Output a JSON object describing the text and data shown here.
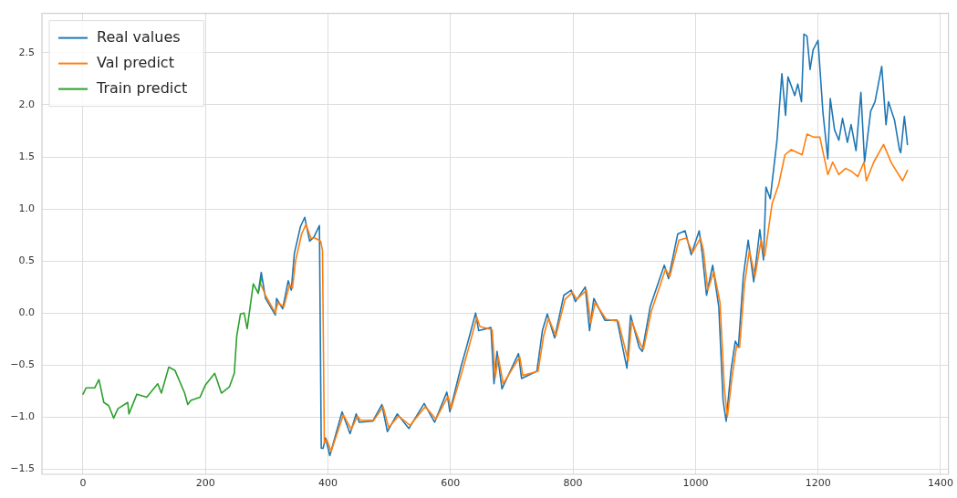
{
  "chart_data": {
    "type": "line",
    "xlim": [
      -67,
      1413
    ],
    "ylim": [
      -1.55,
      2.88
    ],
    "xticks": [
      0,
      200,
      400,
      600,
      800,
      1000,
      1200,
      1400
    ],
    "yticks": [
      {
        "value": -1.5,
        "label": "−1.5"
      },
      {
        "value": -1.0,
        "label": "−1.0"
      },
      {
        "value": -0.5,
        "label": "−0.5"
      },
      {
        "value": 0,
        "label": "0.0"
      },
      {
        "value": 0.5,
        "label": "0.5"
      },
      {
        "value": 1.0,
        "label": "1.0"
      },
      {
        "value": 1.5,
        "label": "1.5"
      },
      {
        "value": 2.0,
        "label": "2.0"
      },
      {
        "value": 2.5,
        "label": "2.5"
      }
    ],
    "grid": true,
    "legend": "top left",
    "marker": "none",
    "line_style": "solid",
    "series": [
      {
        "name": "Real values",
        "color": "#1f77b4",
        "x": [
          286,
          291,
          298,
          314,
          316,
          326,
          335,
          340,
          345,
          355,
          362,
          370,
          377,
          386,
          389,
          392,
          396,
          403,
          423,
          436,
          446,
          451,
          473,
          488,
          497,
          513,
          532,
          557,
          574,
          594,
          599,
          617,
          627,
          641,
          646,
          666,
          671,
          676,
          684,
          711,
          716,
          741,
          750,
          758,
          770,
          785,
          797,
          804,
          820,
          827,
          834,
          852,
          872,
          888,
          894,
          908,
          913,
          926,
          949,
          956,
          971,
          983,
          993,
          1006,
          1011,
          1018,
          1028,
          1038,
          1045,
          1050,
          1058,
          1065,
          1070,
          1078,
          1086,
          1095,
          1105,
          1111,
          1115,
          1122,
          1133,
          1141,
          1147,
          1151,
          1162,
          1167,
          1173,
          1177,
          1182,
          1187,
          1192,
          1200,
          1208,
          1216,
          1220,
          1227,
          1234,
          1240,
          1248,
          1254,
          1262,
          1270,
          1276,
          1286,
          1293,
          1304,
          1311,
          1315,
          1325,
          1333,
          1335,
          1341,
          1346
        ],
        "values": [
          0.19,
          0.39,
          0.14,
          -0.02,
          0.14,
          0.04,
          0.31,
          0.22,
          0.57,
          0.83,
          0.92,
          0.69,
          0.73,
          0.84,
          -1.3,
          -1.3,
          -1.2,
          -1.37,
          -0.95,
          -1.16,
          -0.97,
          -1.05,
          -1.04,
          -0.88,
          -1.14,
          -0.97,
          -1.11,
          -0.87,
          -1.05,
          -0.76,
          -0.95,
          -0.52,
          -0.31,
          0.0,
          -0.17,
          -0.14,
          -0.68,
          -0.37,
          -0.73,
          -0.39,
          -0.63,
          -0.56,
          -0.17,
          -0.01,
          -0.24,
          0.17,
          0.22,
          0.11,
          0.25,
          -0.17,
          0.14,
          -0.07,
          -0.07,
          -0.53,
          -0.02,
          -0.33,
          -0.37,
          0.06,
          0.46,
          0.33,
          0.76,
          0.79,
          0.56,
          0.79,
          0.57,
          0.17,
          0.46,
          0.06,
          -0.84,
          -1.04,
          -0.55,
          -0.27,
          -0.33,
          0.35,
          0.7,
          0.3,
          0.8,
          0.51,
          1.21,
          1.1,
          1.66,
          2.3,
          1.9,
          2.27,
          2.09,
          2.2,
          2.03,
          2.68,
          2.66,
          2.34,
          2.53,
          2.62,
          1.93,
          1.48,
          2.06,
          1.76,
          1.66,
          1.87,
          1.64,
          1.81,
          1.56,
          2.12,
          1.45,
          1.94,
          2.03,
          2.37,
          1.81,
          2.03,
          1.85,
          1.57,
          1.54,
          1.89,
          1.62
        ]
      },
      {
        "name": "Val predict",
        "color": "#ff7f0e",
        "x": [
          290,
          298,
          314,
          318,
          328,
          337,
          342,
          347,
          357,
          364,
          372,
          379,
          388,
          391,
          394,
          398,
          405,
          425,
          438,
          448,
          453,
          475,
          490,
          499,
          515,
          534,
          559,
          576,
          596,
          601,
          619,
          629,
          643,
          648,
          668,
          673,
          678,
          686,
          713,
          718,
          743,
          752,
          760,
          772,
          787,
          799,
          806,
          822,
          829,
          836,
          854,
          874,
          890,
          896,
          910,
          915,
          928,
          951,
          958,
          973,
          985,
          995,
          1008,
          1013,
          1020,
          1030,
          1040,
          1047,
          1052,
          1060,
          1067,
          1072,
          1080,
          1088,
          1097,
          1107,
          1113,
          1125,
          1136,
          1146,
          1156,
          1174,
          1182,
          1193,
          1203,
          1216,
          1224,
          1234,
          1245,
          1255,
          1265,
          1275,
          1279,
          1291,
          1307,
          1320,
          1338,
          1346
        ],
        "values": [
          0.28,
          0.17,
          0.0,
          0.1,
          0.06,
          0.27,
          0.24,
          0.5,
          0.76,
          0.85,
          0.72,
          0.72,
          0.69,
          0.6,
          -1.25,
          -1.22,
          -1.33,
          -0.98,
          -1.12,
          -0.99,
          -1.03,
          -1.03,
          -0.9,
          -1.1,
          -0.99,
          -1.08,
          -0.9,
          -1.02,
          -0.8,
          -0.92,
          -0.56,
          -0.35,
          -0.04,
          -0.13,
          -0.16,
          -0.62,
          -0.42,
          -0.68,
          -0.42,
          -0.6,
          -0.56,
          -0.22,
          -0.05,
          -0.22,
          0.13,
          0.2,
          0.13,
          0.22,
          -0.1,
          0.1,
          -0.06,
          -0.08,
          -0.46,
          -0.08,
          -0.3,
          -0.35,
          0.02,
          0.42,
          0.35,
          0.7,
          0.72,
          0.58,
          0.72,
          0.6,
          0.22,
          0.4,
          0.1,
          -0.72,
          -1.0,
          -0.6,
          -0.32,
          -0.33,
          0.28,
          0.6,
          0.35,
          0.7,
          0.55,
          1.05,
          1.24,
          1.52,
          1.57,
          1.52,
          1.72,
          1.69,
          1.69,
          1.33,
          1.45,
          1.33,
          1.39,
          1.36,
          1.31,
          1.45,
          1.27,
          1.45,
          1.62,
          1.44,
          1.27,
          1.37
        ]
      },
      {
        "name": "Train predict",
        "color": "#2ca02c",
        "x": [
          0,
          5,
          19,
          26,
          34,
          42,
          50,
          57,
          73,
          75,
          88,
          104,
          122,
          128,
          140,
          150,
          166,
          171,
          176,
          191,
          200,
          215,
          226,
          239,
          247,
          251,
          257,
          263,
          268,
          278,
          286,
          291
        ],
        "values": [
          -0.78,
          -0.72,
          -0.72,
          -0.64,
          -0.86,
          -0.89,
          -1.01,
          -0.92,
          -0.86,
          -0.97,
          -0.78,
          -0.81,
          -0.68,
          -0.77,
          -0.52,
          -0.55,
          -0.77,
          -0.88,
          -0.84,
          -0.81,
          -0.69,
          -0.58,
          -0.77,
          -0.71,
          -0.58,
          -0.22,
          -0.01,
          0.0,
          -0.15,
          0.28,
          0.19,
          0.33
        ]
      }
    ]
  }
}
